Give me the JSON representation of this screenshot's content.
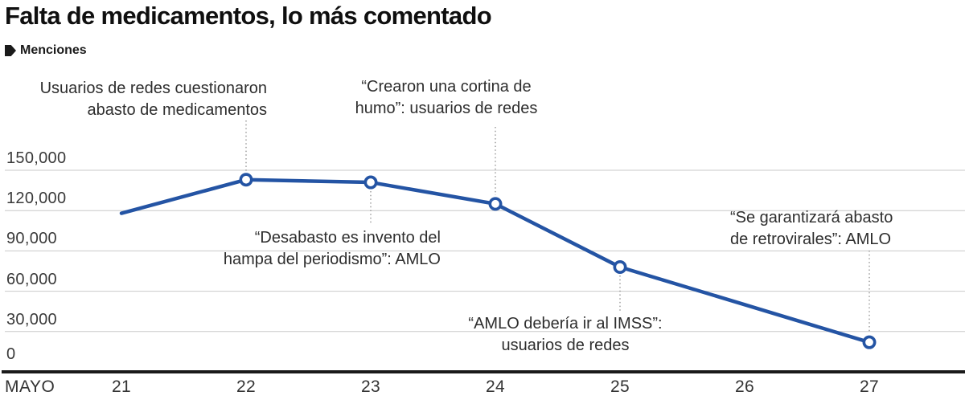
{
  "title": "Falta de medicamentos, lo más comentado",
  "legend": {
    "label": "Menciones"
  },
  "colors": {
    "line": "#2454a4",
    "marker_fill": "#ffffff",
    "grid": "#c9c9c9",
    "axis": "#1a1a1a",
    "leader": "#8f8f8f",
    "annotation_text": "#2e2e2e",
    "title_text": "#0f0f0f"
  },
  "y_axis": {
    "tick_labels": [
      "150,000",
      "120,000",
      "90,000",
      "60,000",
      "30,000",
      "0"
    ],
    "tick_values": [
      150000,
      120000,
      90000,
      60000,
      30000,
      0
    ]
  },
  "x_axis": {
    "month_label": "MAYO",
    "day_labels": [
      "21",
      "22",
      "23",
      "24",
      "25",
      "26",
      "27"
    ]
  },
  "annotations": [
    {
      "anchor_day": 22,
      "lines": [
        "Usuarios de redes cuestionaron",
        "abasto de medicamentos"
      ]
    },
    {
      "anchor_day": 24,
      "lines": [
        "“Crearon una cortina de",
        "humo”: usuarios de redes"
      ]
    },
    {
      "anchor_day": 23,
      "lines": [
        "“Desabasto es invento del",
        "hampa del periodismo”: AMLO"
      ]
    },
    {
      "anchor_day": 25,
      "lines": [
        "“AMLO debería ir al IMSS”:",
        "usuarios de redes"
      ]
    },
    {
      "anchor_day": 27,
      "lines": [
        "“Se garantizará abasto",
        "de retrovirales”: AMLO"
      ]
    }
  ],
  "chart_data": {
    "type": "line",
    "title": "Falta de medicamentos, lo más comentado",
    "x_month": "MAYO",
    "x": [
      21,
      22,
      23,
      24,
      25,
      26,
      27
    ],
    "series": [
      {
        "name": "Menciones",
        "values": [
          118000,
          143000,
          141000,
          125000,
          78000,
          50000,
          22000
        ],
        "marker_days": [
          22,
          23,
          24,
          25,
          27
        ]
      }
    ],
    "ylim": [
      0,
      160000
    ],
    "gridlines": "horizontal",
    "legend_position": "top-left"
  }
}
